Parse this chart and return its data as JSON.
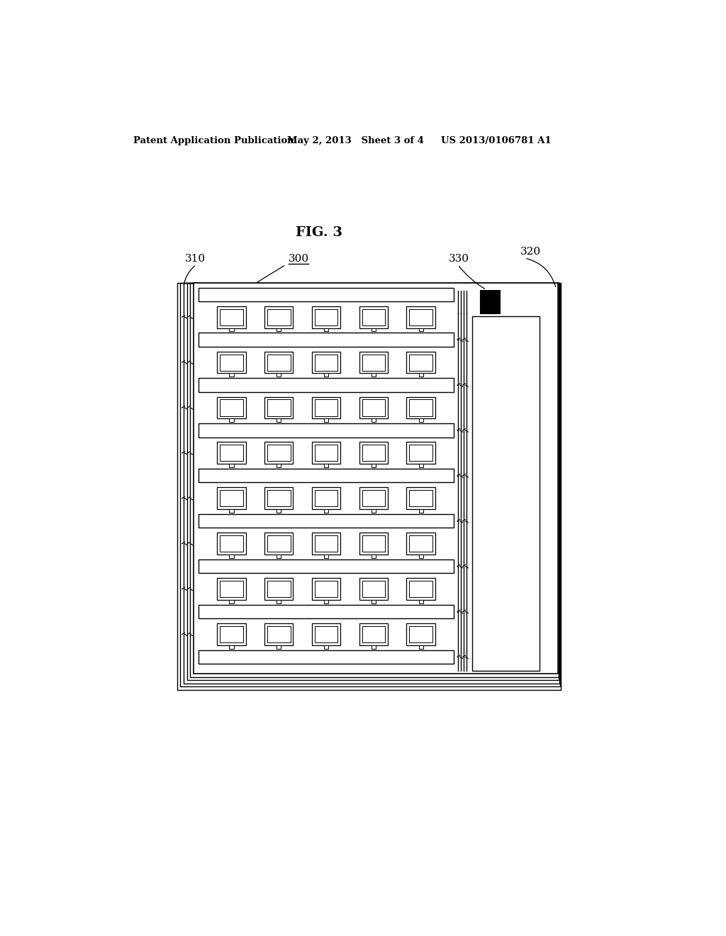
{
  "bg_color": "#ffffff",
  "line_color": "#000000",
  "header_text1": "Patent Application Publication",
  "header_text2": "May 2, 2013   Sheet 3 of 4",
  "header_text3": "US 2013/0106781 A1",
  "fig_label": "FIG. 3",
  "label_300": "300",
  "label_310": "310",
  "label_320": "320",
  "label_330": "330"
}
